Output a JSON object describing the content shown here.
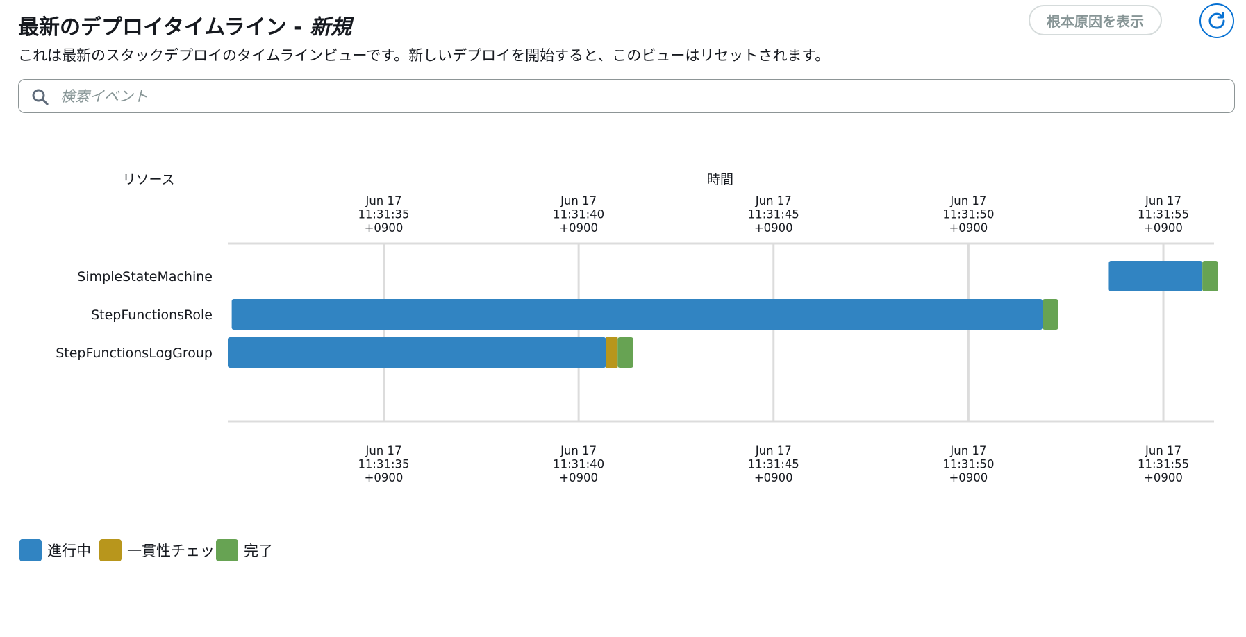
{
  "header": {
    "title": "最新のデプロイタイムライン - ",
    "title_state": "新規",
    "subtitle": "これは最新のスタックデプロイのタイムラインビューです。新しいデプロイを開始すると、このビューはリセットされます。",
    "root_cause_button": "根本原因を表示",
    "refresh_icon": "refresh-icon"
  },
  "search": {
    "placeholder": "検索イベント",
    "value": "",
    "icon": "search-icon"
  },
  "colors": {
    "in_progress": "#3184c2",
    "consistency_check": "#b8961c",
    "complete": "#67a353",
    "grid": "#dcdcdc",
    "accent": "#0972d3"
  },
  "chart_data": {
    "type": "gantt",
    "y_axis_title": "リソース",
    "x_axis_title": "時間",
    "x_ticks": [
      {
        "date": "Jun 17",
        "time": "11:31:35",
        "tz": "+0900"
      },
      {
        "date": "Jun 17",
        "time": "11:31:40",
        "tz": "+0900"
      },
      {
        "date": "Jun 17",
        "time": "11:31:45",
        "tz": "+0900"
      },
      {
        "date": "Jun 17",
        "time": "11:31:50",
        "tz": "+0900"
      },
      {
        "date": "Jun 17",
        "time": "11:31:55",
        "tz": "+0900"
      }
    ],
    "x_range": [
      "11:31:31.0",
      "11:31:56.3"
    ],
    "resources": [
      {
        "name": "SimpleStateMachine",
        "segments": [
          {
            "status": "in_progress",
            "start": "11:31:53.6",
            "end": "11:31:56.0"
          },
          {
            "status": "complete",
            "start": "11:31:56.0",
            "end": "11:31:56.4"
          }
        ]
      },
      {
        "name": "StepFunctionsRole",
        "segments": [
          {
            "status": "in_progress",
            "start": "11:31:31.1",
            "end": "11:31:51.9"
          },
          {
            "status": "complete",
            "start": "11:31:51.9",
            "end": "11:31:52.3"
          }
        ]
      },
      {
        "name": "StepFunctionsLogGroup",
        "segments": [
          {
            "status": "in_progress",
            "start": "11:31:31.0",
            "end": "11:31:40.7"
          },
          {
            "status": "consistency_check",
            "start": "11:31:40.7",
            "end": "11:31:41.0"
          },
          {
            "status": "complete",
            "start": "11:31:41.0",
            "end": "11:31:41.4"
          }
        ]
      }
    ],
    "legend": [
      {
        "status": "in_progress",
        "label": "進行中"
      },
      {
        "status": "consistency_check",
        "label": "一貫性チェック"
      },
      {
        "status": "complete",
        "label": "完了"
      }
    ]
  }
}
